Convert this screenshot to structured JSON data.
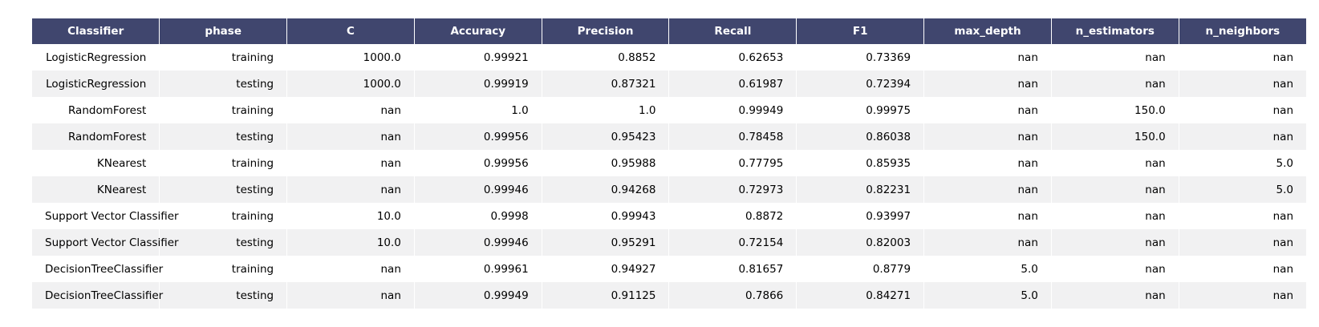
{
  "chart_data": {
    "type": "table",
    "columns": [
      "Classifier",
      "phase",
      "C",
      "Accuracy",
      "Precision",
      "Recall",
      "F1",
      "max_depth",
      "n_estimators",
      "n_neighbors"
    ],
    "rows": [
      [
        "LogisticRegression",
        "training",
        "1000.0",
        "0.99921",
        "0.8852",
        "0.62653",
        "0.73369",
        "nan",
        "nan",
        "nan"
      ],
      [
        "LogisticRegression",
        "testing",
        "1000.0",
        "0.99919",
        "0.87321",
        "0.61987",
        "0.72394",
        "nan",
        "nan",
        "nan"
      ],
      [
        "RandomForest",
        "training",
        "nan",
        "1.0",
        "1.0",
        "0.99949",
        "0.99975",
        "nan",
        "150.0",
        "nan"
      ],
      [
        "RandomForest",
        "testing",
        "nan",
        "0.99956",
        "0.95423",
        "0.78458",
        "0.86038",
        "nan",
        "150.0",
        "nan"
      ],
      [
        "KNearest",
        "training",
        "nan",
        "0.99956",
        "0.95988",
        "0.77795",
        "0.85935",
        "nan",
        "nan",
        "5.0"
      ],
      [
        "KNearest",
        "testing",
        "nan",
        "0.99946",
        "0.94268",
        "0.72973",
        "0.82231",
        "nan",
        "nan",
        "5.0"
      ],
      [
        "Support Vector Classifier",
        "training",
        "10.0",
        "0.9998",
        "0.99943",
        "0.8872",
        "0.93997",
        "nan",
        "nan",
        "nan"
      ],
      [
        "Support Vector Classifier",
        "testing",
        "10.0",
        "0.99946",
        "0.95291",
        "0.72154",
        "0.82003",
        "nan",
        "nan",
        "nan"
      ],
      [
        "DecisionTreeClassifier",
        "training",
        "nan",
        "0.99961",
        "0.94927",
        "0.81657",
        "0.8779",
        "5.0",
        "nan",
        "nan"
      ],
      [
        "DecisionTreeClassifier",
        "testing",
        "nan",
        "0.99949",
        "0.91125",
        "0.7866",
        "0.84271",
        "5.0",
        "nan",
        "nan"
      ]
    ]
  },
  "colors": {
    "header_background": "#40466e",
    "header_text": "#ffffff",
    "row_stripe": "#f1f1f2",
    "row_plain": "#ffffff"
  }
}
